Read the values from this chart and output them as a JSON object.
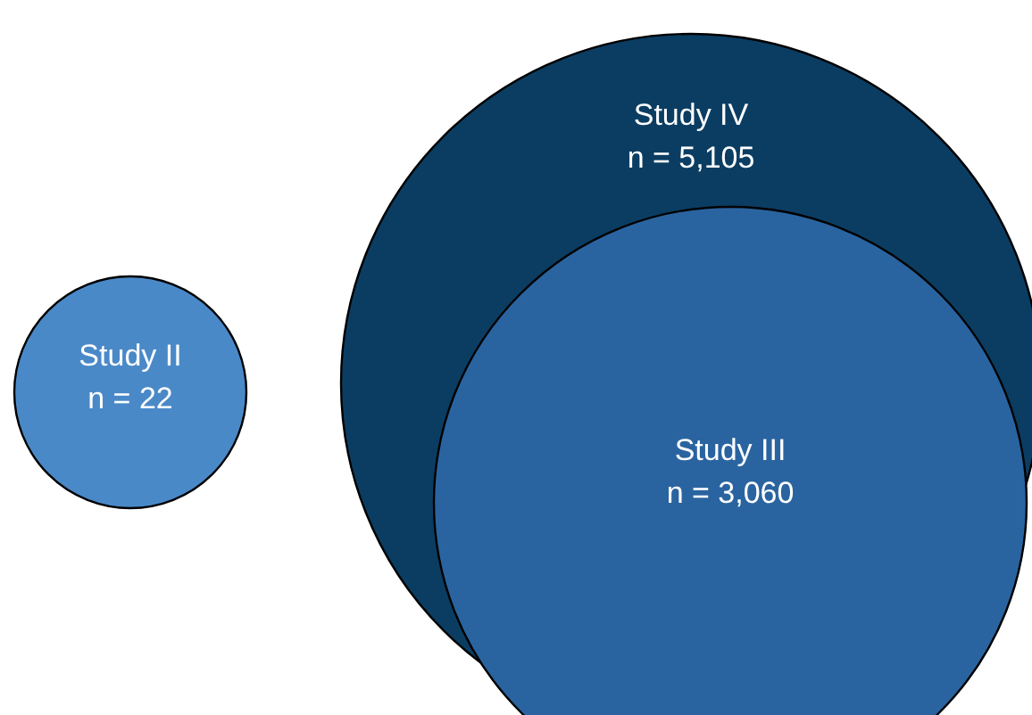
{
  "chart_data": {
    "type": "other",
    "categories": [
      "Study II",
      "Study III",
      "Study IV"
    ],
    "values": [
      22,
      3060,
      5105
    ],
    "value_labels": [
      "n = 22",
      "n = 3,060",
      "n = 5,105"
    ],
    "colors": [
      "#4a89c8",
      "#2a64a0",
      "#0b3d62"
    ]
  }
}
